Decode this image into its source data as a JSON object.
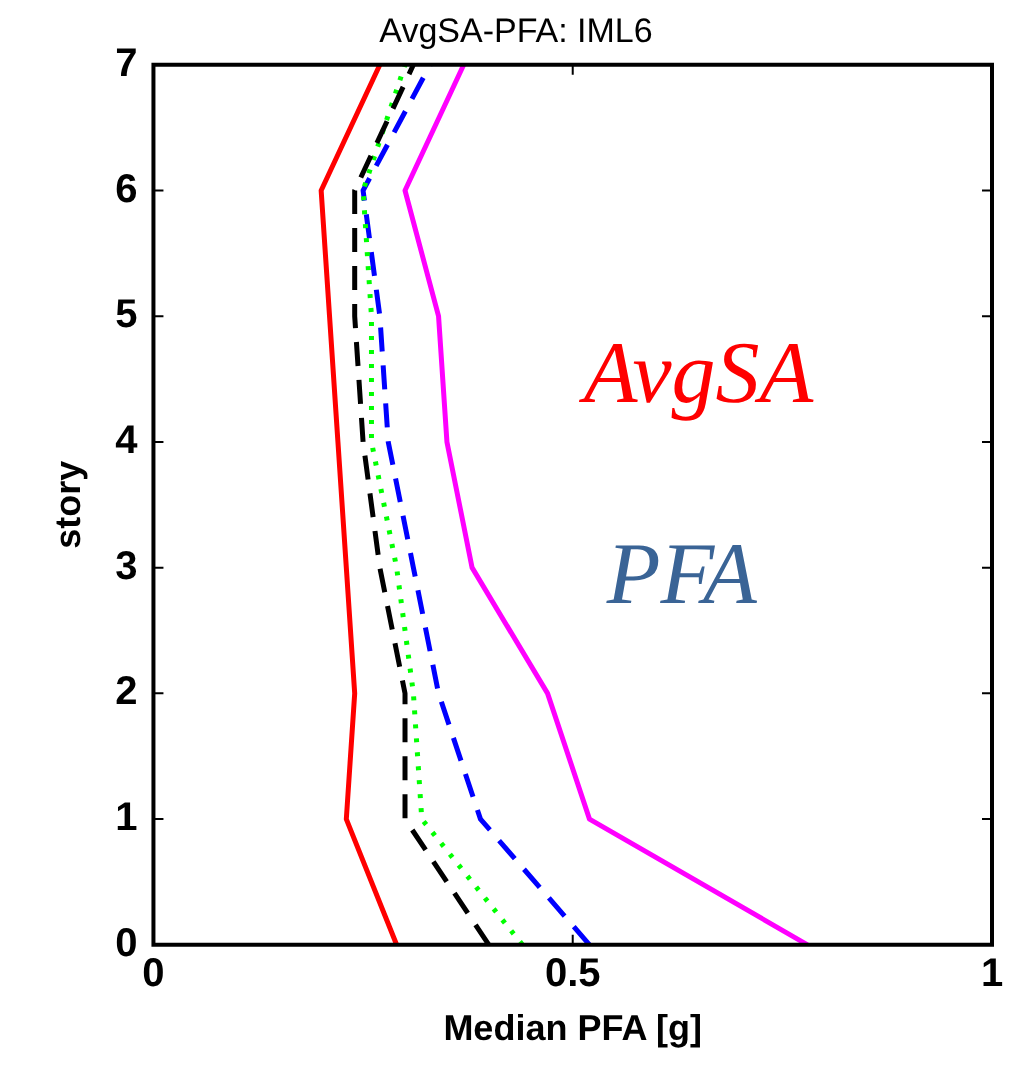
{
  "chart_data": {
    "type": "line",
    "title": "AvgSA-PFA: IML6",
    "xlabel": "Median PFA [g]",
    "ylabel": "story",
    "xlim": [
      0,
      1
    ],
    "xticks": [
      0,
      0.5,
      1
    ],
    "ylim": [
      0,
      7
    ],
    "yticks": [
      0,
      1,
      2,
      3,
      4,
      5,
      6,
      7
    ],
    "grid": false,
    "legend": false,
    "marker": "none",
    "annotations": [
      "AvgSA",
      "PFA"
    ],
    "series": [
      {
        "color": "#ff0000",
        "line_style": "solid",
        "x": [
          0.29,
          0.23,
          0.24,
          0.23,
          0.22,
          0.21,
          0.2,
          0.27
        ],
        "values": [
          0,
          1,
          2,
          3,
          4,
          5,
          6,
          7
        ]
      },
      {
        "color": "#000000",
        "line_style": "dashed",
        "x": [
          0.4,
          0.3,
          0.3,
          0.27,
          0.25,
          0.24,
          0.24,
          0.31
        ],
        "values": [
          0,
          1,
          2,
          3,
          4,
          5,
          6,
          7
        ]
      },
      {
        "color": "#00ff00",
        "line_style": "dotted",
        "x": [
          0.44,
          0.32,
          0.31,
          0.29,
          0.26,
          0.26,
          0.25,
          0.3
        ],
        "values": [
          0,
          1,
          2,
          3,
          4,
          5,
          6,
          7
        ]
      },
      {
        "color": "#0000ff",
        "line_style": "dashed",
        "x": [
          0.52,
          0.39,
          0.34,
          0.31,
          0.28,
          0.27,
          0.25,
          0.33
        ],
        "values": [
          0,
          1,
          2,
          3,
          4,
          5,
          6,
          7
        ]
      },
      {
        "color": "#ff00ff",
        "line_style": "solid",
        "x": [
          0.78,
          0.52,
          0.47,
          0.38,
          0.35,
          0.34,
          0.3,
          0.37
        ],
        "values": [
          0,
          1,
          2,
          3,
          4,
          5,
          6,
          7
        ]
      }
    ]
  }
}
